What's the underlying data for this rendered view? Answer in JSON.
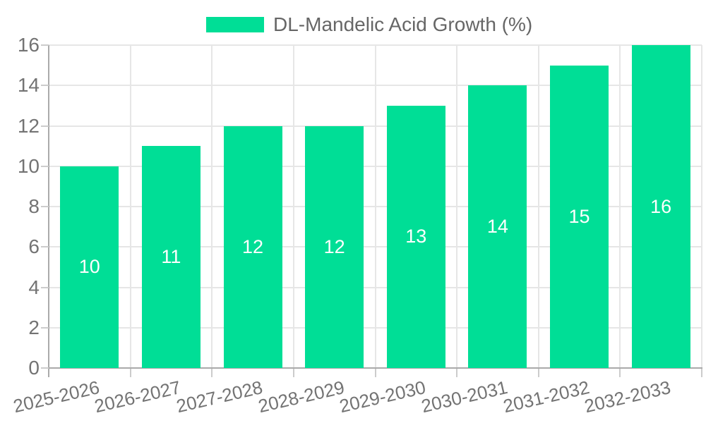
{
  "chart_data": {
    "type": "bar",
    "title": "",
    "legend": {
      "label": "DL-Mandelic Acid Growth (%)",
      "position": "top"
    },
    "categories": [
      "2025-2026",
      "2026-2027",
      "2027-2028",
      "2028-2029",
      "2029-2030",
      "2030-2031",
      "2031-2032",
      "2032-2033"
    ],
    "values": [
      10,
      11,
      12,
      12,
      13,
      14,
      15,
      16
    ],
    "data_labels": [
      "10",
      "11",
      "12",
      "12",
      "13",
      "14",
      "15",
      "16"
    ],
    "xlabel": "",
    "ylabel": "",
    "ylim": [
      0,
      16
    ],
    "yticks": [
      0,
      2,
      4,
      6,
      8,
      10,
      12,
      14,
      16
    ],
    "grid": true,
    "colors": {
      "bar": "#00DE96",
      "grid": "#e6e6e6",
      "axis": "#aaaaaa",
      "minor_tick": "#cccccc",
      "tick_label": "#737373",
      "legend_text": "#666666",
      "data_label": "#ffffff",
      "background": "#ffffff"
    }
  }
}
